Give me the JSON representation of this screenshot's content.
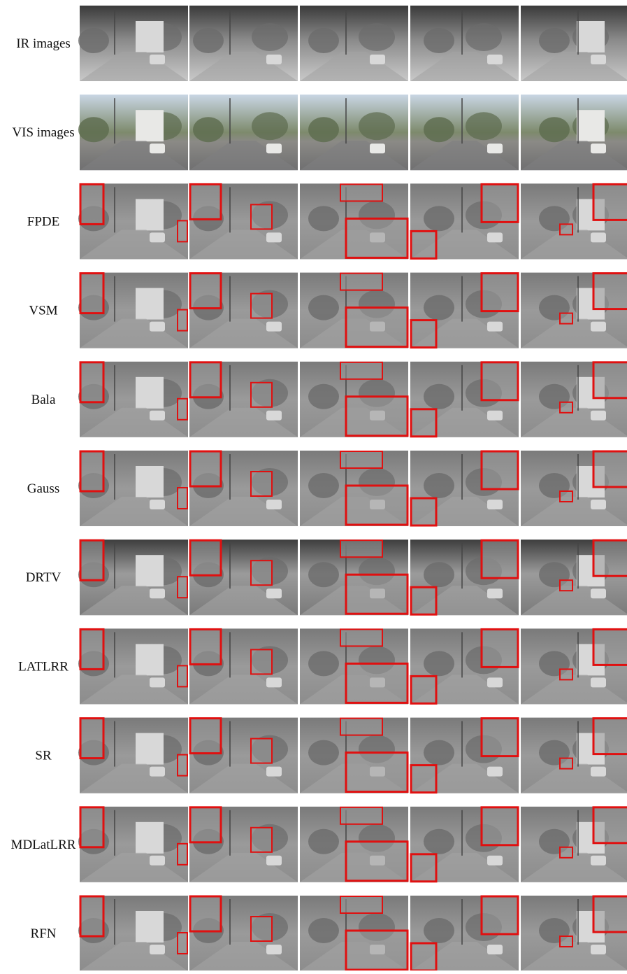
{
  "rows": [
    "IR images",
    "VIS images",
    "FPDE",
    "VSM",
    "Bala",
    "Gauss",
    "DRTV",
    "LATLRR",
    "SR",
    "MDLatLRR",
    "RFN"
  ]
}
